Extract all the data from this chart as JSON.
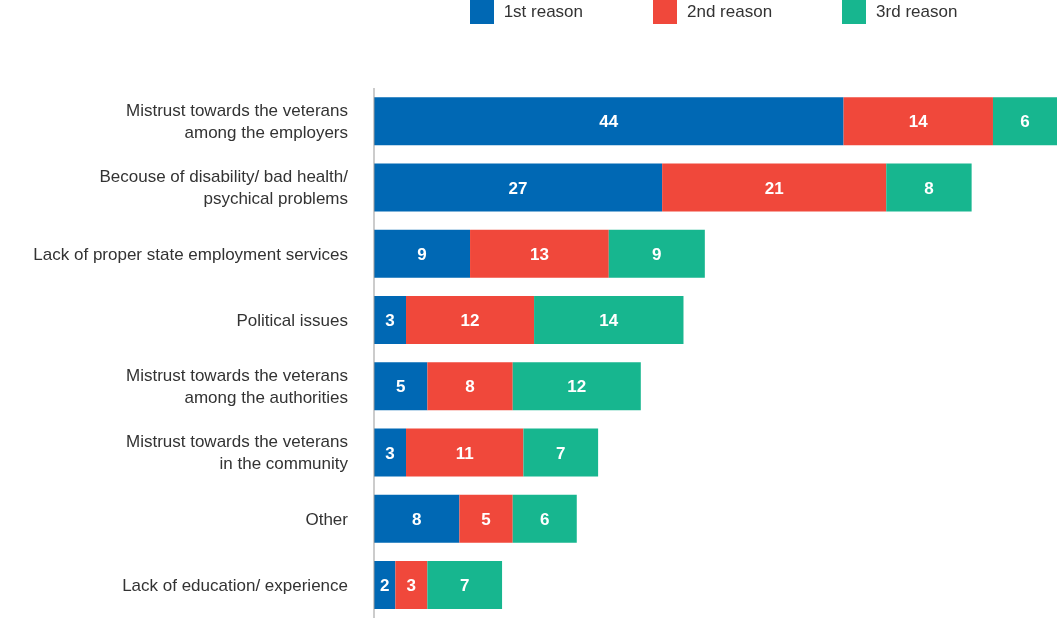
{
  "chart_data": {
    "type": "bar",
    "orientation": "horizontal",
    "stacked": true,
    "data_labels": true,
    "legend": "top",
    "categories": [
      "Mistrust towards the veterans\namong the employers",
      "Becouse of disability/ bad health/\npsychical problems",
      "Lack of proper state employment services",
      "Political issues",
      "Mistrust towards the veterans\namong the authorities",
      "Mistrust towards the veterans\nin the community",
      "Other",
      "Lack of education/ experience"
    ],
    "series": [
      {
        "name": "1st reason",
        "color": "#0068b4",
        "values": [
          44,
          27,
          9,
          3,
          5,
          3,
          8,
          2
        ]
      },
      {
        "name": "2nd reason",
        "color": "#f0483b",
        "values": [
          14,
          21,
          13,
          12,
          8,
          11,
          5,
          3
        ]
      },
      {
        "name": "3rd reason",
        "color": "#17b68f",
        "values": [
          6,
          8,
          9,
          14,
          12,
          7,
          6,
          7
        ]
      }
    ]
  }
}
